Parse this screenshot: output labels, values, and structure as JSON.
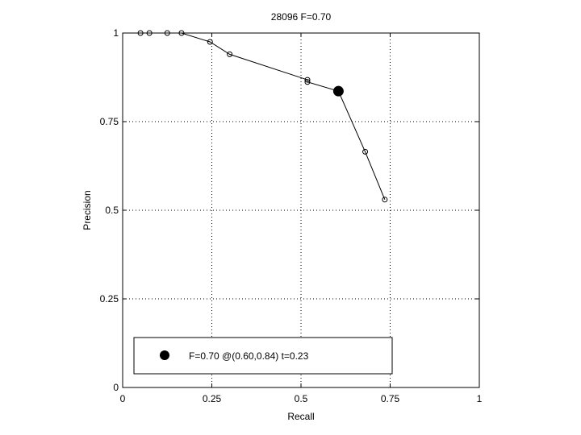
{
  "chart_data": {
    "type": "line",
    "title": "28096 F=0.70",
    "xlabel": "Recall",
    "ylabel": "Precision",
    "xlim": [
      0,
      1
    ],
    "ylim": [
      0,
      1
    ],
    "xticks": [
      0,
      0.25,
      0.5,
      0.75,
      1
    ],
    "xtick_labels": [
      "0",
      "0.25",
      "0.5",
      "0.75",
      "1"
    ],
    "yticks": [
      0,
      0.25,
      0.5,
      0.75,
      1
    ],
    "ytick_labels": [
      "0",
      "0.25",
      "0.5",
      "0.75",
      "1"
    ],
    "grid": "dotted",
    "series": [
      {
        "x": [
          0.05,
          0.075,
          0.125,
          0.165,
          0.245,
          0.3,
          0.518,
          0.518,
          0.605,
          0.68,
          0.735
        ],
        "y": [
          1.0,
          1.0,
          1.0,
          1.0,
          0.975,
          0.94,
          0.868,
          0.862,
          0.836,
          0.665,
          0.53
        ],
        "marker": "open-circle",
        "color": "#000000"
      }
    ],
    "highlight_point": {
      "x": 0.605,
      "y": 0.836,
      "marker": "filled-circle"
    },
    "legend": {
      "position": "bottom-left",
      "entries": [
        "F=0.70 @(0.60,0.84) t=0.23"
      ]
    }
  }
}
